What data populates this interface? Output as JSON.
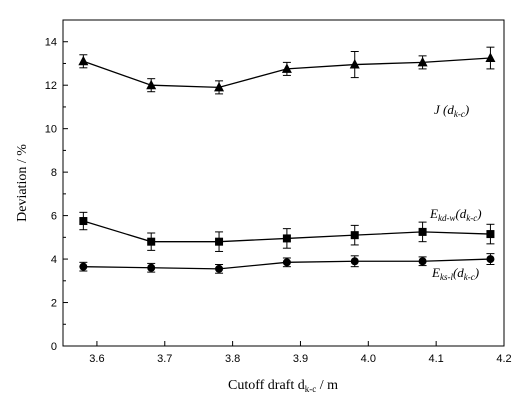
{
  "chart_data": {
    "type": "line",
    "xlabel": "Cutoff draft d",
    "xlabel_sub": "k-c",
    "xlabel_unit": " / m",
    "ylabel": "Deviation / %",
    "xlim": [
      3.55,
      4.2
    ],
    "ylim": [
      0,
      15
    ],
    "xticks": [
      3.6,
      3.7,
      3.8,
      3.9,
      4.0,
      4.1,
      4.2
    ],
    "yticks": [
      0,
      2,
      4,
      6,
      8,
      10,
      12,
      14
    ],
    "x": [
      3.58,
      3.68,
      3.78,
      3.88,
      3.98,
      4.08,
      4.18
    ],
    "series": [
      {
        "name": "J (d_k-c)",
        "label_main": "J (d",
        "label_sub": "k-c",
        "label_end": ")",
        "marker": "triangle",
        "values": [
          13.1,
          12.0,
          11.9,
          12.75,
          12.95,
          13.05,
          13.25
        ],
        "errors": [
          0.3,
          0.3,
          0.3,
          0.3,
          0.6,
          0.3,
          0.5
        ]
      },
      {
        "name": "E_kd-w (d_k-c)",
        "label_main": "E",
        "label_sub": "kd-w",
        "label_mid": "(d",
        "label_sub2": "k-c",
        "label_end": ")",
        "marker": "square",
        "values": [
          5.75,
          4.8,
          4.8,
          4.95,
          5.1,
          5.25,
          5.15
        ],
        "errors": [
          0.4,
          0.4,
          0.45,
          0.45,
          0.45,
          0.45,
          0.45
        ]
      },
      {
        "name": "E_ks-l (d_k-c)",
        "label_main": "E",
        "label_sub": "ks-l",
        "label_mid": "(d",
        "label_sub2": "k-c",
        "label_end": ")",
        "marker": "circle",
        "values": [
          3.65,
          3.6,
          3.55,
          3.85,
          3.9,
          3.9,
          4.0
        ],
        "errors": [
          0.2,
          0.2,
          0.2,
          0.2,
          0.25,
          0.2,
          0.25
        ]
      }
    ]
  }
}
